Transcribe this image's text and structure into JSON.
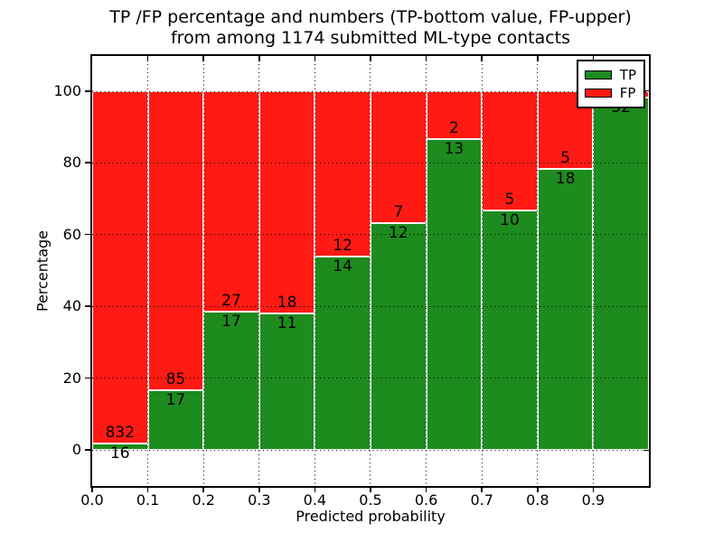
{
  "title": {
    "line1": "TP /FP percentage and numbers (TP-bottom value, FP-upper)",
    "line2": "from among 1174 submitted ML-type contacts"
  },
  "chart_data": {
    "type": "bar",
    "stacked": true,
    "orientation": "vertical",
    "title": "TP /FP percentage and numbers (TP-bottom value, FP-upper) from among 1174 submitted ML-type contacts",
    "xlabel": "Predicted probability",
    "ylabel": "Percentage",
    "total_submitted": 1174,
    "xlim": [
      0.0,
      1.0
    ],
    "ylim": [
      -10.5,
      109.5
    ],
    "yticks": [
      0,
      20,
      40,
      60,
      80,
      100
    ],
    "xticks": [
      "0.0",
      "0.1",
      "0.2",
      "0.3",
      "0.4",
      "0.5",
      "0.6",
      "0.7",
      "0.8",
      "0.9"
    ],
    "grid": "dotted black, both axes, drawn above bars",
    "bar_edge_color": "#ffffff",
    "colors": {
      "tp": "#1e8b1e",
      "fp": "#ff1a14"
    },
    "legend": {
      "position": "upper right",
      "entries": [
        {
          "label": "TP",
          "color": "#1e8b1e"
        },
        {
          "label": "FP",
          "color": "#ff1a14"
        }
      ]
    },
    "label_convention": "TP count below green/red boundary, FP count above it",
    "bars": [
      {
        "bin_start": 0.0,
        "bin_end": 0.1,
        "tp": 16,
        "fp": 832,
        "tp_pct": 1.89,
        "fp_pct": 98.11,
        "fp_label_visible": true
      },
      {
        "bin_start": 0.1,
        "bin_end": 0.2,
        "tp": 17,
        "fp": 85,
        "tp_pct": 16.67,
        "fp_pct": 83.33,
        "fp_label_visible": true
      },
      {
        "bin_start": 0.2,
        "bin_end": 0.3,
        "tp": 17,
        "fp": 27,
        "tp_pct": 38.64,
        "fp_pct": 61.36,
        "fp_label_visible": true
      },
      {
        "bin_start": 0.3,
        "bin_end": 0.4,
        "tp": 11,
        "fp": 18,
        "tp_pct": 37.93,
        "fp_pct": 62.07,
        "fp_label_visible": true
      },
      {
        "bin_start": 0.4,
        "bin_end": 0.5,
        "tp": 14,
        "fp": 12,
        "tp_pct": 53.85,
        "fp_pct": 46.15,
        "fp_label_visible": true
      },
      {
        "bin_start": 0.5,
        "bin_end": 0.6,
        "tp": 12,
        "fp": 7,
        "tp_pct": 63.16,
        "fp_pct": 36.84,
        "fp_label_visible": true
      },
      {
        "bin_start": 0.6,
        "bin_end": 0.7,
        "tp": 13,
        "fp": 2,
        "tp_pct": 86.67,
        "fp_pct": 13.33,
        "fp_label_visible": true
      },
      {
        "bin_start": 0.7,
        "bin_end": 0.8,
        "tp": 10,
        "fp": 5,
        "tp_pct": 66.67,
        "fp_pct": 33.33,
        "fp_label_visible": true
      },
      {
        "bin_start": 0.8,
        "bin_end": 0.9,
        "tp": 18,
        "fp": 5,
        "tp_pct": 78.26,
        "fp_pct": 21.74,
        "fp_label_visible": true
      },
      {
        "bin_start": 0.9,
        "bin_end": 1.0,
        "tp": 52,
        "fp": 1,
        "tp_pct": 98.11,
        "fp_pct": 1.89,
        "fp_label_visible": false
      }
    ]
  }
}
